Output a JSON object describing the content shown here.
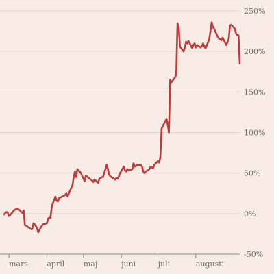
{
  "chart_data": {
    "type": "line",
    "title": "",
    "xlabel": "",
    "ylabel": "",
    "ylim": [
      -50,
      250
    ],
    "y_ticks": [
      {
        "value": 250,
        "label": "250%"
      },
      {
        "value": 200,
        "label": "200%"
      },
      {
        "value": 150,
        "label": "150%"
      },
      {
        "value": 100,
        "label": "100%"
      },
      {
        "value": 50,
        "label": "50%"
      },
      {
        "value": 0,
        "label": "0%"
      },
      {
        "value": -50,
        "label": "-50%"
      }
    ],
    "x_range": [
      "2024-02-26",
      "2024-09-06"
    ],
    "x_ticks": [
      {
        "value": "2024-03-01",
        "label": "mars"
      },
      {
        "value": "2024-04-01",
        "label": "april"
      },
      {
        "value": "2024-05-01",
        "label": "maj"
      },
      {
        "value": "2024-06-01",
        "label": "juni"
      },
      {
        "value": "2024-07-01",
        "label": "juli"
      },
      {
        "value": "2024-08-01",
        "label": "augusti"
      }
    ],
    "grid": "horizontal",
    "line_color": "#c03a3a",
    "series": [
      {
        "points": [
          [
            "2024-02-26",
            -1
          ],
          [
            "2024-02-27",
            1
          ],
          [
            "2024-02-28",
            2
          ],
          [
            "2024-02-29",
            1
          ],
          [
            "2024-03-01",
            -3
          ],
          [
            "2024-03-03",
            0
          ],
          [
            "2024-03-05",
            4
          ],
          [
            "2024-03-06",
            5
          ],
          [
            "2024-03-08",
            6
          ],
          [
            "2024-03-10",
            4
          ],
          [
            "2024-03-11",
            2
          ],
          [
            "2024-03-12",
            1
          ],
          [
            "2024-03-13",
            4
          ],
          [
            "2024-03-14",
            -14
          ],
          [
            "2024-03-15",
            -15
          ],
          [
            "2024-03-17",
            -17
          ],
          [
            "2024-03-19",
            -19
          ],
          [
            "2024-03-20",
            -19
          ],
          [
            "2024-03-21",
            -12
          ],
          [
            "2024-03-22",
            -13
          ],
          [
            "2024-03-24",
            -18
          ],
          [
            "2024-03-25",
            -23
          ],
          [
            "2024-03-26",
            -20
          ],
          [
            "2024-03-27",
            -17
          ],
          [
            "2024-03-28",
            -15
          ],
          [
            "2024-03-29",
            -13
          ],
          [
            "2024-04-01",
            -12
          ],
          [
            "2024-04-02",
            -6
          ],
          [
            "2024-04-03",
            -5
          ],
          [
            "2024-04-04",
            -5
          ],
          [
            "2024-04-05",
            8
          ],
          [
            "2024-04-06",
            13
          ],
          [
            "2024-04-08",
            21
          ],
          [
            "2024-04-09",
            16
          ],
          [
            "2024-04-10",
            15
          ],
          [
            "2024-04-11",
            19
          ],
          [
            "2024-04-12",
            20
          ],
          [
            "2024-04-15",
            22
          ],
          [
            "2024-04-16",
            23
          ],
          [
            "2024-04-17",
            25
          ],
          [
            "2024-04-18",
            21
          ],
          [
            "2024-04-19",
            25
          ],
          [
            "2024-04-22",
            35
          ],
          [
            "2024-04-23",
            45
          ],
          [
            "2024-04-24",
            52
          ],
          [
            "2024-04-25",
            45
          ],
          [
            "2024-04-26",
            55
          ],
          [
            "2024-04-29",
            50
          ],
          [
            "2024-04-30",
            46
          ],
          [
            "2024-05-02",
            40
          ],
          [
            "2024-05-03",
            47
          ],
          [
            "2024-05-06",
            43
          ],
          [
            "2024-05-07",
            42
          ],
          [
            "2024-05-08",
            41
          ],
          [
            "2024-05-09",
            39
          ],
          [
            "2024-05-10",
            42
          ],
          [
            "2024-05-13",
            38
          ],
          [
            "2024-05-14",
            43
          ],
          [
            "2024-05-15",
            44
          ],
          [
            "2024-05-16",
            45
          ],
          [
            "2024-05-17",
            45
          ],
          [
            "2024-05-20",
            60
          ],
          [
            "2024-05-21",
            55
          ],
          [
            "2024-05-22",
            48
          ],
          [
            "2024-05-23",
            46
          ],
          [
            "2024-05-24",
            45
          ],
          [
            "2024-05-27",
            42
          ],
          [
            "2024-05-28",
            44
          ],
          [
            "2024-05-29",
            43
          ],
          [
            "2024-05-30",
            46
          ],
          [
            "2024-05-31",
            50
          ],
          [
            "2024-06-03",
            58
          ],
          [
            "2024-06-04",
            53
          ],
          [
            "2024-06-05",
            52
          ],
          [
            "2024-06-06",
            55
          ],
          [
            "2024-06-07",
            53
          ],
          [
            "2024-06-10",
            55
          ],
          [
            "2024-06-11",
            62
          ],
          [
            "2024-06-12",
            58
          ],
          [
            "2024-06-13",
            59
          ],
          [
            "2024-06-14",
            60
          ],
          [
            "2024-06-17",
            60
          ],
          [
            "2024-06-18",
            58
          ],
          [
            "2024-06-19",
            52
          ],
          [
            "2024-06-20",
            50
          ],
          [
            "2024-06-21",
            52
          ],
          [
            "2024-06-24",
            55
          ],
          [
            "2024-06-25",
            58
          ],
          [
            "2024-06-26",
            57
          ],
          [
            "2024-06-27",
            56
          ],
          [
            "2024-06-28",
            60
          ],
          [
            "2024-07-01",
            65
          ],
          [
            "2024-07-02",
            63
          ],
          [
            "2024-07-03",
            70
          ],
          [
            "2024-07-04",
            105
          ],
          [
            "2024-07-05",
            108
          ],
          [
            "2024-07-08",
            117
          ],
          [
            "2024-07-09",
            110
          ],
          [
            "2024-07-10",
            100
          ],
          [
            "2024-07-11",
            165
          ],
          [
            "2024-07-12",
            162
          ],
          [
            "2024-07-15",
            168
          ],
          [
            "2024-07-16",
            172
          ],
          [
            "2024-07-17",
            235
          ],
          [
            "2024-07-18",
            230
          ],
          [
            "2024-07-19",
            206
          ],
          [
            "2024-07-22",
            200
          ],
          [
            "2024-07-23",
            205
          ],
          [
            "2024-07-24",
            212
          ],
          [
            "2024-07-25",
            210
          ],
          [
            "2024-07-26",
            213
          ],
          [
            "2024-07-29",
            204
          ],
          [
            "2024-07-30",
            208
          ],
          [
            "2024-07-31",
            210
          ],
          [
            "2024-08-01",
            205
          ],
          [
            "2024-08-02",
            208
          ],
          [
            "2024-08-05",
            205
          ],
          [
            "2024-08-06",
            207
          ],
          [
            "2024-08-07",
            210
          ],
          [
            "2024-08-08",
            206
          ],
          [
            "2024-08-09",
            204
          ],
          [
            "2024-08-12",
            215
          ],
          [
            "2024-08-13",
            225
          ],
          [
            "2024-08-14",
            236
          ],
          [
            "2024-08-15",
            230
          ],
          [
            "2024-08-16",
            228
          ],
          [
            "2024-08-19",
            218
          ],
          [
            "2024-08-20",
            216
          ],
          [
            "2024-08-21",
            215
          ],
          [
            "2024-08-22",
            214
          ],
          [
            "2024-08-23",
            217
          ],
          [
            "2024-08-26",
            208
          ],
          [
            "2024-08-27",
            212
          ],
          [
            "2024-08-28",
            216
          ],
          [
            "2024-08-29",
            232
          ],
          [
            "2024-08-30",
            233
          ],
          [
            "2024-09-02",
            228
          ],
          [
            "2024-09-03",
            222
          ],
          [
            "2024-09-04",
            220
          ],
          [
            "2024-09-05",
            220
          ],
          [
            "2024-09-06",
            185
          ]
        ]
      }
    ]
  }
}
